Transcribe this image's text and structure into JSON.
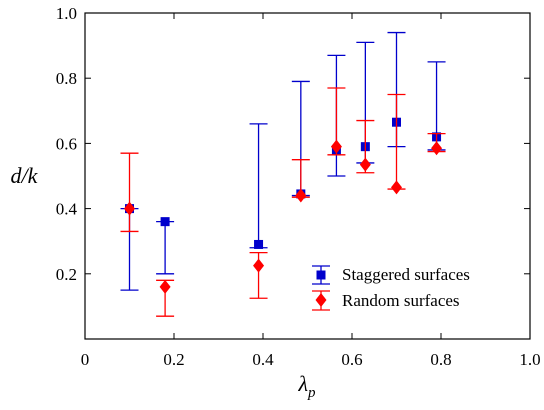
{
  "chart_data": {
    "type": "scatter",
    "xlabel": "λp",
    "xlabel_main": "λ",
    "xlabel_sub": "p",
    "ylabel": "d/k",
    "xlim": [
      0,
      1.0
    ],
    "ylim": [
      0,
      1.0
    ],
    "x_ticks": [
      0,
      0.2,
      0.4,
      0.6,
      0.8,
      1.0
    ],
    "x_tick_labels": [
      "0",
      "0.2",
      "0.4",
      "0.6",
      "0.8",
      "1.0"
    ],
    "y_ticks": [
      0.2,
      0.4,
      0.6,
      0.8,
      1.0
    ],
    "y_tick_labels": [
      "0.2",
      "0.4",
      "0.6",
      "0.8",
      "1.0"
    ],
    "grid": false,
    "legend_position": "bottom-right",
    "series": [
      {
        "name": "Staggered surfaces",
        "color": "#0000cc",
        "marker": "square",
        "points": [
          {
            "x": 0.1,
            "y": 0.4,
            "low": 0.15,
            "high": 0.4
          },
          {
            "x": 0.18,
            "y": 0.36,
            "low": 0.2,
            "high": 0.36
          },
          {
            "x": 0.39,
            "y": 0.29,
            "low": 0.28,
            "high": 0.66
          },
          {
            "x": 0.485,
            "y": 0.445,
            "low": 0.44,
            "high": 0.79
          },
          {
            "x": 0.565,
            "y": 0.58,
            "low": 0.5,
            "high": 0.87
          },
          {
            "x": 0.63,
            "y": 0.59,
            "low": 0.54,
            "high": 0.91
          },
          {
            "x": 0.7,
            "y": 0.665,
            "low": 0.59,
            "high": 0.94
          },
          {
            "x": 0.79,
            "y": 0.62,
            "low": 0.58,
            "high": 0.85
          }
        ]
      },
      {
        "name": "Random surfaces",
        "color": "#ff0000",
        "marker": "diamond",
        "points": [
          {
            "x": 0.1,
            "y": 0.4,
            "low": 0.33,
            "high": 0.57
          },
          {
            "x": 0.18,
            "y": 0.16,
            "low": 0.07,
            "high": 0.18
          },
          {
            "x": 0.39,
            "y": 0.225,
            "low": 0.125,
            "high": 0.265
          },
          {
            "x": 0.485,
            "y": 0.44,
            "low": 0.435,
            "high": 0.55
          },
          {
            "x": 0.565,
            "y": 0.59,
            "low": 0.565,
            "high": 0.77
          },
          {
            "x": 0.63,
            "y": 0.535,
            "low": 0.51,
            "high": 0.67
          },
          {
            "x": 0.7,
            "y": 0.465,
            "low": 0.46,
            "high": 0.75
          },
          {
            "x": 0.79,
            "y": 0.585,
            "low": 0.575,
            "high": 0.63
          }
        ]
      }
    ]
  }
}
